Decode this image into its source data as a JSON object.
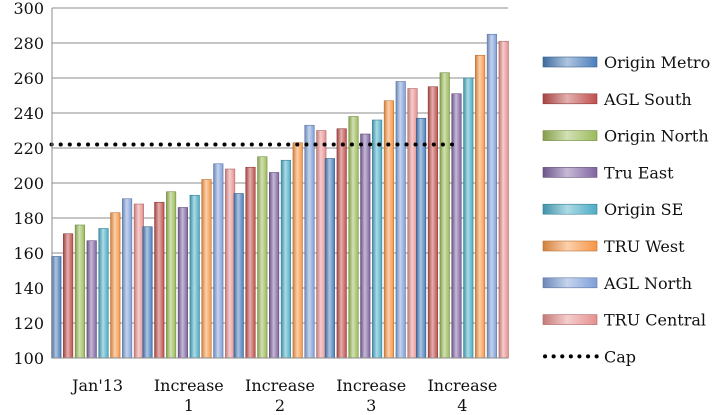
{
  "chart_data": {
    "type": "bar",
    "title": "",
    "xlabel": "",
    "ylabel": "",
    "ylim": [
      100,
      300
    ],
    "ytick_step": 20,
    "grid": "horizontal",
    "legend_position": "right",
    "categories": [
      [
        "Jan'13"
      ],
      [
        "Increase",
        "1"
      ],
      [
        "Increase",
        "2"
      ],
      [
        "Increase",
        "3"
      ],
      [
        "Increase",
        "4"
      ]
    ],
    "series": [
      {
        "name": "Origin Metro",
        "color": "#4a7ebb",
        "values": [
          158,
          175,
          194,
          214,
          237
        ]
      },
      {
        "name": "AGL South",
        "color": "#c0504d",
        "values": [
          171,
          189,
          209,
          231,
          255
        ]
      },
      {
        "name": "Origin North",
        "color": "#9bbb59",
        "values": [
          176,
          195,
          215,
          238,
          263
        ]
      },
      {
        "name": "Tru East",
        "color": "#8064a2",
        "values": [
          167,
          186,
          206,
          228,
          251
        ]
      },
      {
        "name": "Origin SE",
        "color": "#4bacc6",
        "values": [
          174,
          193,
          213,
          236,
          260
        ]
      },
      {
        "name": "TRU West",
        "color": "#f79646",
        "values": [
          183,
          202,
          223,
          247,
          273
        ]
      },
      {
        "name": "AGL North",
        "color": "#7f9fd8",
        "values": [
          191,
          211,
          233,
          258,
          285
        ]
      },
      {
        "name": "TRU Central",
        "color": "#e6908e",
        "values": [
          188,
          208,
          230,
          254,
          281
        ]
      }
    ],
    "cap": {
      "name": "Cap",
      "value": 222,
      "color": "#000000"
    }
  }
}
